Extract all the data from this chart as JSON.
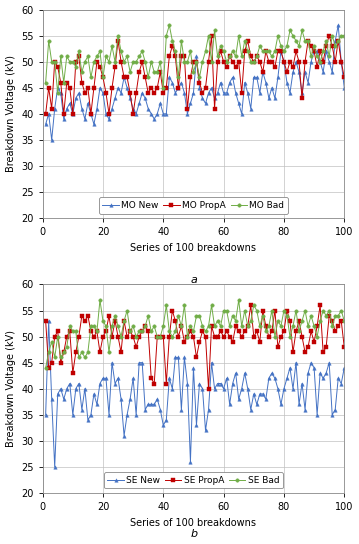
{
  "subplot_a": {
    "title": "a",
    "ylabel": "Breakdown Voltage (kV)",
    "xlabel": "Series of 100 breakdowns",
    "ylim": [
      20,
      60
    ],
    "yticks": [
      20,
      25,
      30,
      35,
      40,
      45,
      50,
      55,
      60
    ],
    "xlim": [
      0,
      100
    ],
    "xticks": [
      0,
      20,
      40,
      60,
      80,
      100
    ],
    "legend": [
      "MO New",
      "MO PropA",
      "MO Bad"
    ],
    "colors": [
      "#4472C4",
      "#C00000",
      "#70AD47"
    ],
    "mo_new": [
      38,
      40,
      35,
      41,
      45,
      44,
      39,
      41,
      42,
      40,
      43,
      44,
      41,
      39,
      42,
      40,
      38,
      41,
      45,
      44,
      40,
      39,
      41,
      43,
      45,
      44,
      47,
      45,
      43,
      41,
      40,
      42,
      44,
      43,
      41,
      40,
      39,
      40,
      42,
      40,
      40,
      47,
      46,
      44,
      45,
      46,
      44,
      40,
      42,
      44,
      51,
      45,
      43,
      42,
      44,
      45,
      43,
      44,
      46,
      44,
      44,
      46,
      47,
      44,
      42,
      40,
      46,
      44,
      41,
      47,
      47,
      44,
      48,
      46,
      43,
      45,
      43,
      47,
      52,
      50,
      46,
      44,
      48,
      50,
      48,
      44,
      48,
      46,
      50,
      52,
      52,
      50,
      48,
      52,
      50,
      48,
      54,
      57,
      50,
      45
    ],
    "mo_propa": [
      40,
      45,
      41,
      50,
      49,
      46,
      40,
      46,
      45,
      40,
      50,
      51,
      46,
      44,
      45,
      40,
      45,
      50,
      49,
      47,
      44,
      40,
      45,
      49,
      54,
      50,
      47,
      47,
      44,
      40,
      44,
      48,
      50,
      47,
      44,
      45,
      44,
      45,
      48,
      44,
      45,
      51,
      53,
      51,
      45,
      51,
      51,
      41,
      47,
      50,
      50,
      46,
      44,
      45,
      50,
      55,
      41,
      50,
      52,
      50,
      49,
      51,
      50,
      49,
      50,
      44,
      52,
      54,
      51,
      50,
      51,
      50,
      48,
      52,
      50,
      50,
      49,
      52,
      52,
      50,
      48,
      50,
      49,
      52,
      50,
      43,
      50,
      54,
      53,
      52,
      49,
      52,
      50,
      53,
      55,
      53,
      50,
      54,
      50,
      47
    ],
    "mo_bad": [
      46,
      54,
      50,
      50,
      44,
      51,
      46,
      51,
      50,
      50,
      49,
      52,
      48,
      50,
      51,
      47,
      50,
      51,
      52,
      47,
      51,
      50,
      53,
      50,
      55,
      52,
      50,
      51,
      48,
      50,
      50,
      51,
      52,
      50,
      47,
      50,
      48,
      48,
      50,
      45,
      55,
      57,
      54,
      52,
      47,
      54,
      50,
      50,
      52,
      48,
      50,
      47,
      50,
      52,
      55,
      50,
      56,
      51,
      53,
      52,
      50,
      51,
      52,
      51,
      55,
      51,
      54,
      52,
      50,
      50,
      51,
      53,
      52,
      52,
      52,
      51,
      52,
      55,
      53,
      52,
      53,
      56,
      55,
      54,
      53,
      56,
      54,
      54,
      51,
      53,
      51,
      50,
      52,
      54,
      51,
      55,
      53,
      54,
      55,
      55
    ]
  },
  "subplot_b": {
    "title": "b",
    "ylabel": "Breakdown Voltage (kV)",
    "xlabel": "Series of 100 breakdowns",
    "ylim": [
      20,
      60
    ],
    "yticks": [
      20,
      25,
      30,
      35,
      40,
      45,
      50,
      55,
      60
    ],
    "xlim": [
      0,
      100
    ],
    "xticks": [
      0,
      20,
      40,
      60,
      80,
      100
    ],
    "legend": [
      "SE New",
      "SE PropA",
      "SE Bad"
    ],
    "colors": [
      "#4472C4",
      "#C00000",
      "#70AD47"
    ],
    "se_new": [
      35,
      53,
      38,
      25,
      39,
      40,
      38,
      40,
      41,
      35,
      40,
      41,
      36,
      40,
      34,
      35,
      39,
      37,
      41,
      42,
      42,
      35,
      45,
      41,
      42,
      38,
      31,
      35,
      38,
      42,
      35,
      45,
      45,
      36,
      37,
      37,
      37,
      38,
      36,
      33,
      34,
      42,
      40,
      46,
      46,
      36,
      46,
      41,
      26,
      44,
      33,
      41,
      40,
      32,
      36,
      45,
      40,
      41,
      41,
      40,
      42,
      37,
      41,
      43,
      38,
      40,
      43,
      40,
      36,
      39,
      37,
      39,
      39,
      38,
      42,
      43,
      42,
      40,
      37,
      40,
      42,
      44,
      40,
      45,
      37,
      41,
      36,
      43,
      45,
      44,
      35,
      43,
      42,
      43,
      45,
      35,
      36,
      42,
      41,
      44
    ],
    "se_propa": [
      53,
      44,
      45,
      50,
      51,
      45,
      47,
      50,
      51,
      43,
      47,
      50,
      54,
      53,
      54,
      51,
      50,
      51,
      47,
      50,
      51,
      54,
      50,
      53,
      50,
      47,
      53,
      50,
      51,
      50,
      48,
      50,
      51,
      52,
      51,
      42,
      41,
      50,
      50,
      50,
      41,
      50,
      55,
      53,
      50,
      52,
      49,
      50,
      51,
      50,
      46,
      49,
      51,
      50,
      40,
      52,
      50,
      50,
      51,
      50,
      51,
      50,
      49,
      52,
      51,
      50,
      51,
      52,
      56,
      50,
      51,
      49,
      55,
      52,
      50,
      51,
      55,
      48,
      50,
      51,
      55,
      53,
      47,
      51,
      53,
      50,
      47,
      48,
      51,
      49,
      52,
      56,
      47,
      48,
      54,
      53,
      51,
      52,
      53,
      48
    ],
    "se_bad": [
      44,
      47,
      49,
      46,
      50,
      46,
      47,
      48,
      52,
      51,
      51,
      46,
      47,
      46,
      47,
      52,
      52,
      51,
      57,
      53,
      52,
      47,
      52,
      54,
      52,
      50,
      53,
      55,
      51,
      52,
      50,
      51,
      51,
      52,
      54,
      51,
      52,
      50,
      50,
      52,
      56,
      51,
      50,
      51,
      54,
      52,
      56,
      50,
      52,
      51,
      54,
      54,
      52,
      51,
      52,
      56,
      52,
      53,
      52,
      55,
      55,
      52,
      54,
      53,
      57,
      52,
      55,
      52,
      53,
      56,
      55,
      52,
      54,
      51,
      52,
      55,
      50,
      53,
      52,
      55,
      54,
      50,
      52,
      55,
      51,
      53,
      55,
      52,
      54,
      52,
      50,
      53,
      55,
      54,
      55,
      52,
      54,
      54,
      55,
      53
    ]
  },
  "line_width": 0.7,
  "marker_size": 2.5,
  "font_size": 8,
  "label_fontsize": 7,
  "tick_fontsize": 7,
  "legend_fontsize": 6.5,
  "grid_color": "#C0C0C0",
  "background_color": "#FFFFFF"
}
